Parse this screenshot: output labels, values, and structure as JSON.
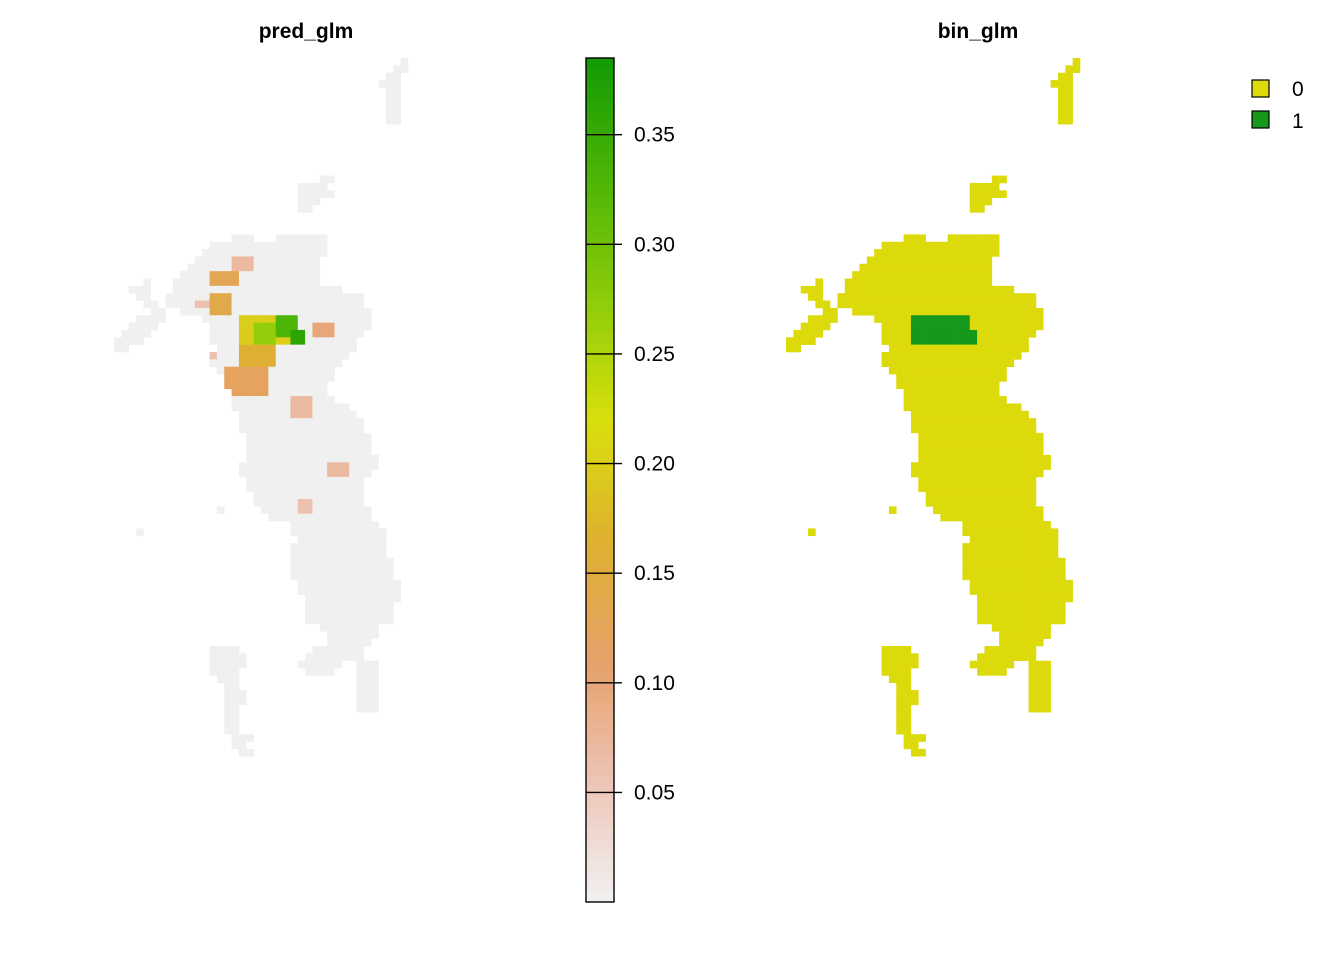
{
  "panels": [
    {
      "title": "pred_glm",
      "type": "continuous-raster",
      "colorbar": {
        "range": [
          0.0,
          0.385
        ],
        "ticks": [
          "0.05",
          "0.10",
          "0.15",
          "0.20",
          "0.25",
          "0.30",
          "0.35"
        ],
        "tick_values": [
          0.05,
          0.1,
          0.15,
          0.2,
          0.25,
          0.3,
          0.35
        ],
        "palette": [
          "#F2F2F2",
          "#EDC4B6",
          "#E6A06A",
          "#DEB02F",
          "#D8DF0C",
          "#8DCC0A",
          "#4DB506",
          "#129A03"
        ]
      }
    },
    {
      "title": "bin_glm",
      "type": "categorical-raster",
      "legend": {
        "placement": "top-right",
        "items": [
          {
            "label": "0",
            "color": "#DDDA0C"
          },
          {
            "label": "1",
            "color": "#16991A"
          }
        ]
      }
    }
  ]
}
